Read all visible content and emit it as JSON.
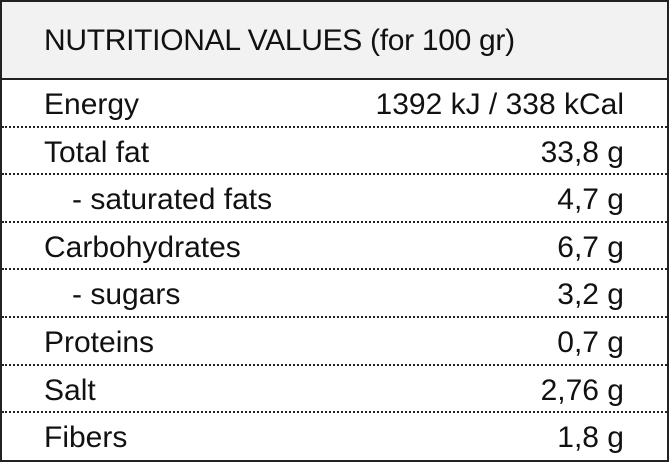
{
  "header": {
    "title": "NUTRITIONAL VALUES (for 100 gr)"
  },
  "table": {
    "rows": [
      [
        "Energy",
        "1392 kJ / 338 kCal"
      ],
      [
        "Total fat",
        "33,8 g"
      ],
      [
        "- saturated fats",
        "4,7 g"
      ],
      [
        "Carbohydrates",
        "6,7 g"
      ],
      [
        "- sugars",
        "3,2 g"
      ],
      [
        "Proteins",
        "0,7 g"
      ],
      [
        "Salt",
        "2,76 g"
      ],
      [
        "Fibers",
        "1,8 g"
      ]
    ]
  }
}
